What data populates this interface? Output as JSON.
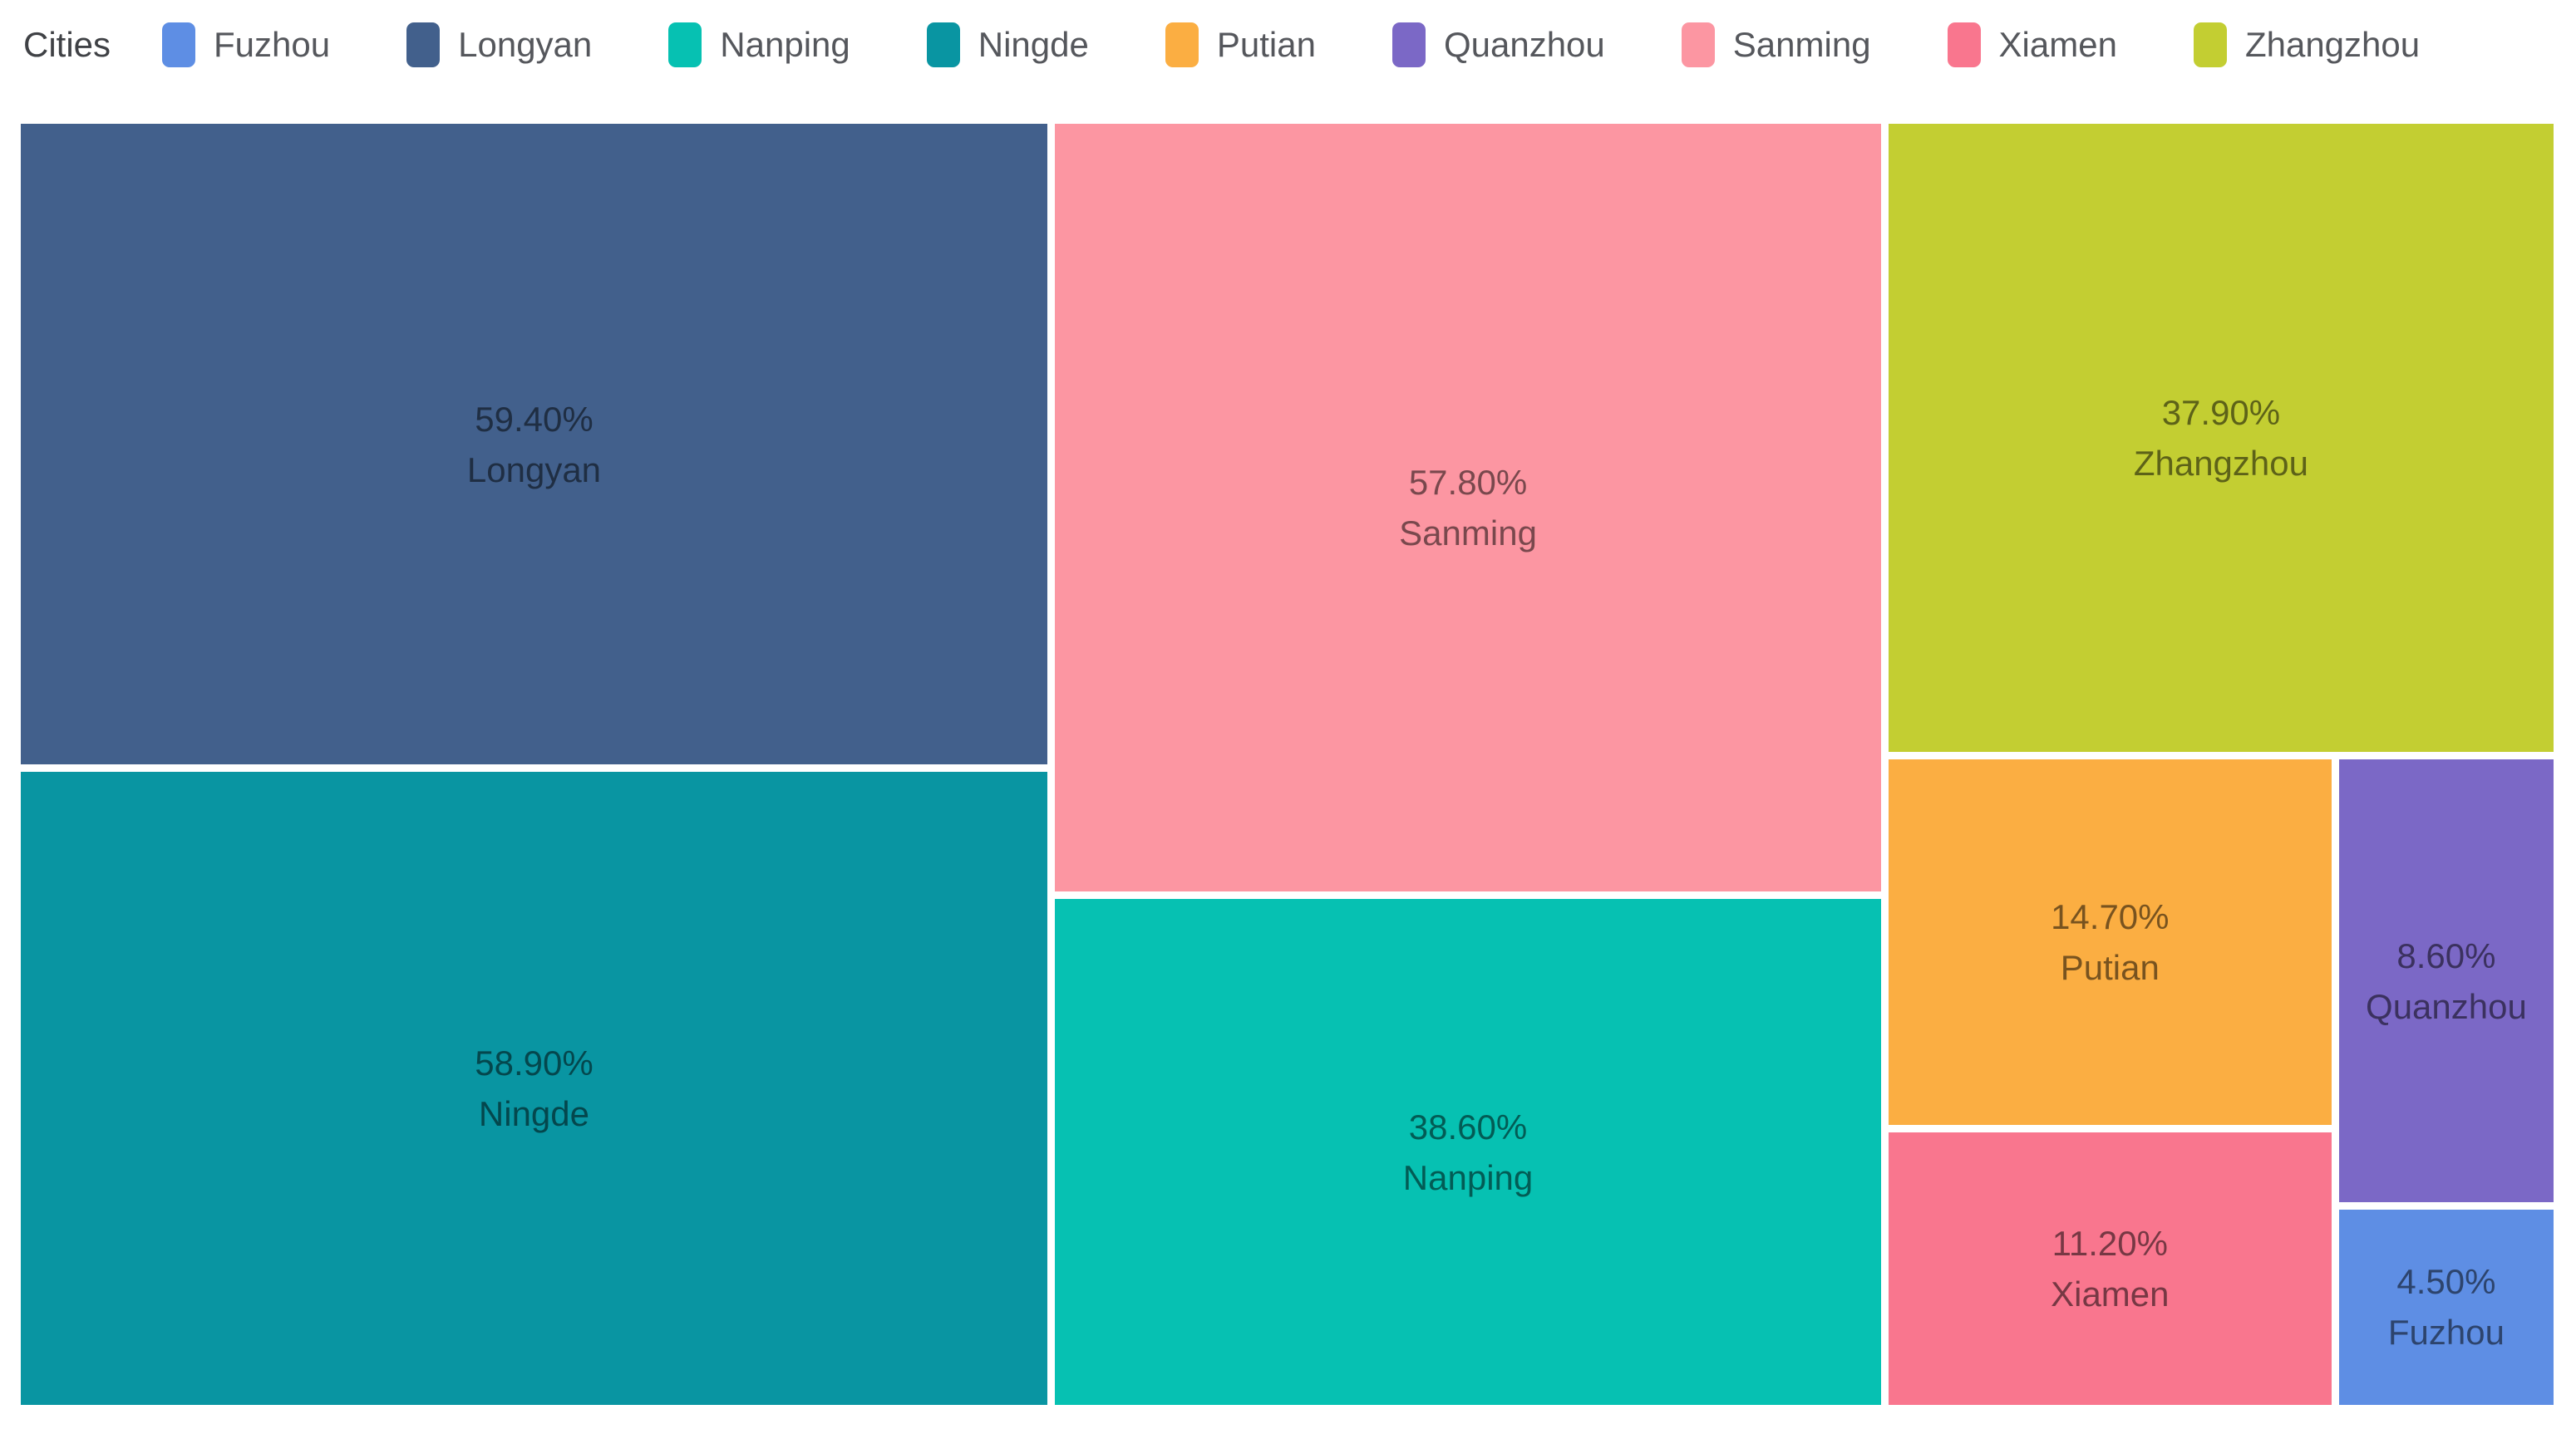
{
  "legend": {
    "title": "Cities",
    "items": [
      "Fuzhou",
      "Longyan",
      "Nanping",
      "Ningde",
      "Putian",
      "Quanzhou",
      "Sanming",
      "Xiamen",
      "Zhangzhou"
    ]
  },
  "chart_data": {
    "type": "treemap",
    "title": "Cities",
    "legend_position": "top-left",
    "value_format": "percent",
    "gap_color": "#ffffff",
    "label_style": "value above name, centered, dark translucent",
    "cells": [
      {
        "name": "Longyan",
        "value": 59.4,
        "label": "59.40%",
        "color": "#42608C",
        "rect": {
          "x": 0,
          "y": 0,
          "w": 40.53,
          "h": 50.0
        }
      },
      {
        "name": "Ningde",
        "value": 58.9,
        "label": "58.90%",
        "color": "#0995A2",
        "rect": {
          "x": 0,
          "y": 50.58,
          "w": 40.53,
          "h": 49.42
        }
      },
      {
        "name": "Sanming",
        "value": 57.8,
        "label": "57.80%",
        "color": "#FC96A2",
        "rect": {
          "x": 40.83,
          "y": 0,
          "w": 32.62,
          "h": 59.92
        }
      },
      {
        "name": "Nanping",
        "value": 38.6,
        "label": "38.60%",
        "color": "#06C1B2",
        "rect": {
          "x": 40.83,
          "y": 60.51,
          "w": 32.62,
          "h": 39.49
        }
      },
      {
        "name": "Zhangzhou",
        "value": 37.9,
        "label": "37.90%",
        "color": "#C3CE32",
        "rect": {
          "x": 73.74,
          "y": 0,
          "w": 26.26,
          "h": 49.03
        }
      },
      {
        "name": "Putian",
        "value": 14.7,
        "label": "14.70%",
        "color": "#FBAE42",
        "rect": {
          "x": 73.74,
          "y": 49.61,
          "w": 17.49,
          "h": 28.53
        }
      },
      {
        "name": "Xiamen",
        "value": 11.2,
        "label": "11.20%",
        "color": "#F9768E",
        "rect": {
          "x": 73.74,
          "y": 78.73,
          "w": 17.49,
          "h": 21.27
        }
      },
      {
        "name": "Quanzhou",
        "value": 8.6,
        "label": "8.60%",
        "color": "#7B68C6",
        "rect": {
          "x": 91.53,
          "y": 49.61,
          "w": 8.47,
          "h": 34.57
        }
      },
      {
        "name": "Fuzhou",
        "value": 4.5,
        "label": "4.50%",
        "color": "#5E8EE4",
        "rect": {
          "x": 91.53,
          "y": 84.76,
          "w": 8.47,
          "h": 15.24
        }
      }
    ]
  }
}
